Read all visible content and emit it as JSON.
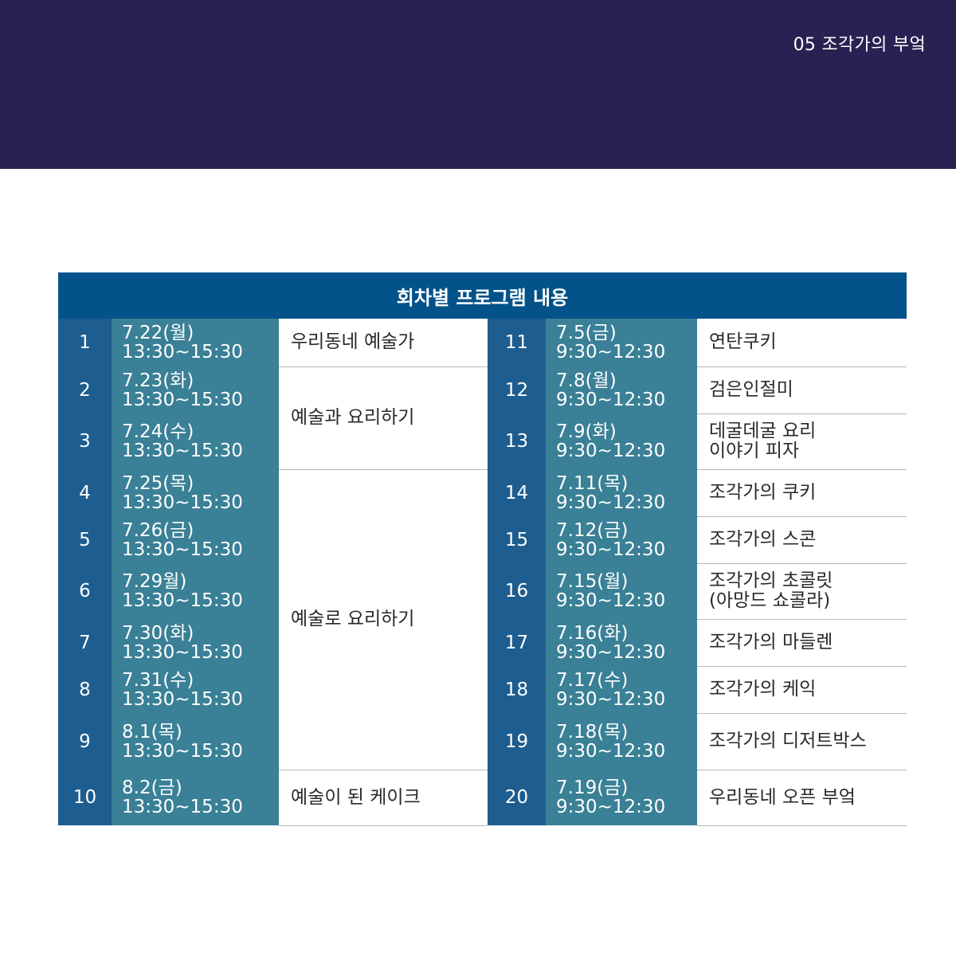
{
  "header": {
    "page_tag": "05 조각가의 부엌"
  },
  "schedule": {
    "title": "회차별 프로그램 내용",
    "left": [
      {
        "no": "1",
        "date": "7.22(월)",
        "time": "13:30~15:30"
      },
      {
        "no": "2",
        "date": "7.23(화)",
        "time": "13:30~15:30"
      },
      {
        "no": "3",
        "date": "7.24(수)",
        "time": "13:30~15:30"
      },
      {
        "no": "4",
        "date": "7.25(목)",
        "time": "13:30~15:30"
      },
      {
        "no": "5",
        "date": "7.26(금)",
        "time": "13:30~15:30"
      },
      {
        "no": "6",
        "date": "7.29월)",
        "time": "13:30~15:30"
      },
      {
        "no": "7",
        "date": "7.30(화)",
        "time": "13:30~15:30"
      },
      {
        "no": "8",
        "date": "7.31(수)",
        "time": "13:30~15:30"
      },
      {
        "no": "9",
        "date": "8.1(목)",
        "time": "13:30~15:30"
      },
      {
        "no": "10",
        "date": "8.2(금)",
        "time": "13:30~15:30"
      }
    ],
    "left_programs": [
      {
        "name": "우리동네 예술가",
        "sessions": "1"
      },
      {
        "name": "예술과 요리하기",
        "sessions": "2-3"
      },
      {
        "name": "예술로 요리하기",
        "sessions": "4-9"
      },
      {
        "name": "예술이 된 케이크",
        "sessions": "10"
      }
    ],
    "right": [
      {
        "no": "11",
        "date": "7.5(금)",
        "time": "9:30~12:30",
        "program": [
          "연탄쿠키"
        ]
      },
      {
        "no": "12",
        "date": "7.8(월)",
        "time": "9:30~12:30",
        "program": [
          "검은인절미"
        ]
      },
      {
        "no": "13",
        "date": "7.9(화)",
        "time": "9:30~12:30",
        "program": [
          "데굴데굴 요리",
          "이야기 피자"
        ]
      },
      {
        "no": "14",
        "date": "7.11(목)",
        "time": "9:30~12:30",
        "program": [
          "조각가의 쿠키"
        ]
      },
      {
        "no": "15",
        "date": "7.12(금)",
        "time": "9:30~12:30",
        "program": [
          "조각가의 스콘"
        ]
      },
      {
        "no": "16",
        "date": "7.15(월)",
        "time": "9:30~12:30",
        "program": [
          "조각가의 초콜릿",
          "(아망드 쇼콜라)"
        ]
      },
      {
        "no": "17",
        "date": "7.16(화)",
        "time": "9:30~12:30",
        "program": [
          "조각가의 마들렌"
        ]
      },
      {
        "no": "18",
        "date": "7.17(수)",
        "time": "9:30~12:30",
        "program": [
          "조각가의 케익"
        ]
      },
      {
        "no": "19",
        "date": "7.18(목)",
        "time": "9:30~12:30",
        "program": [
          "조각가의 디저트박스"
        ]
      },
      {
        "no": "20",
        "date": "7.19(금)",
        "time": "9:30~12:30",
        "program": [
          "우리동네 오픈 부엌"
        ]
      }
    ]
  },
  "colors": {
    "header_band": "#282252",
    "title_bar": "#03538a",
    "number_column": "#1d5d8f",
    "date_column": "#3a8096",
    "divider": "#b9b9b9"
  }
}
